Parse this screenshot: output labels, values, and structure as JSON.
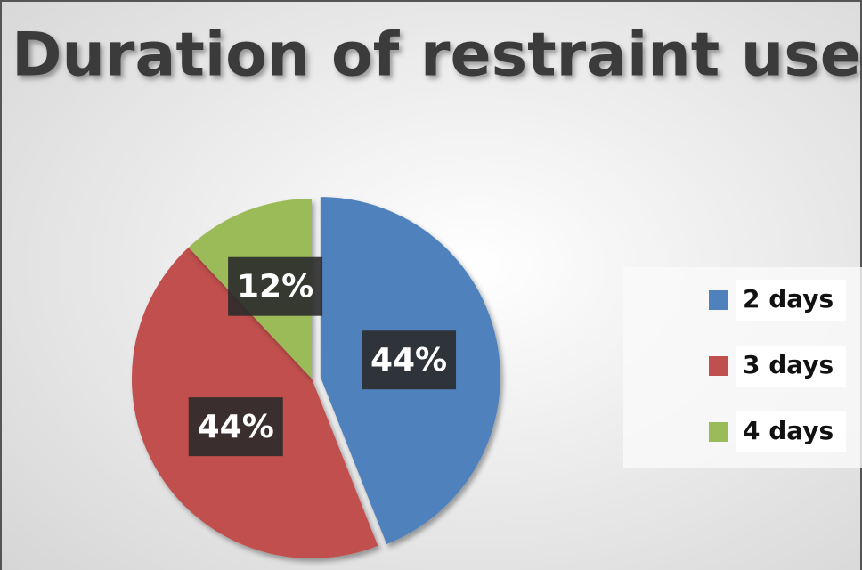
{
  "chart_data": {
    "type": "pie",
    "title": "Duration of restraint use",
    "categories": [
      "2 days",
      "3 days",
      "4 days"
    ],
    "values": [
      44,
      44,
      12
    ],
    "value_labels": [
      "44%",
      "44%",
      "12%"
    ],
    "colors": [
      "#4f81bd",
      "#c0504d",
      "#9bbb59"
    ],
    "legend": "right"
  }
}
